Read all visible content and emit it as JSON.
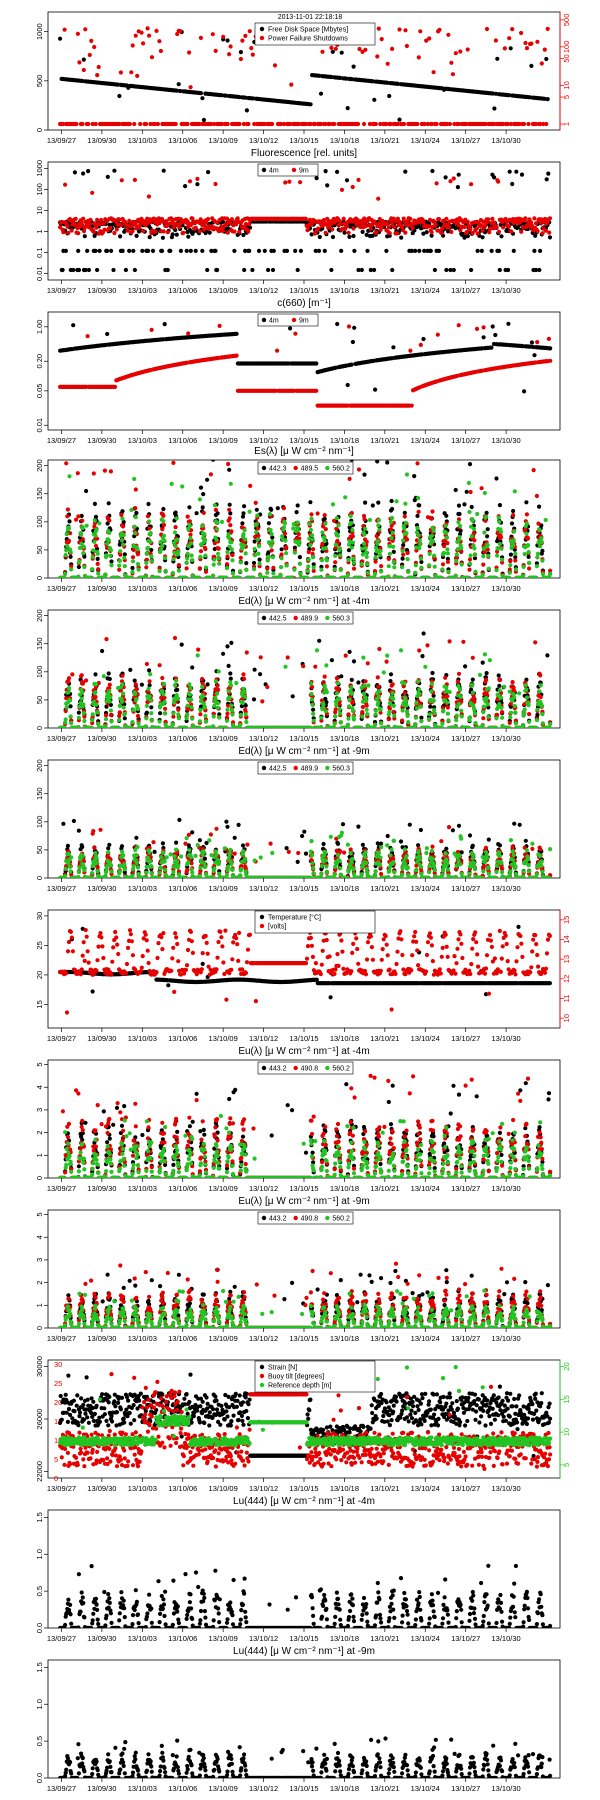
{
  "colors": {
    "black": "#000000",
    "red": "#e60000",
    "green": "#22c422",
    "axis": "#000000"
  },
  "x_ticks": [
    "13/09/27",
    "13/09/30",
    "13/10/03",
    "13/10/06",
    "13/10/09",
    "13/10/12",
    "13/10/15",
    "13/10/18",
    "13/10/21",
    "13/10/24",
    "13/10/27",
    "13/10/30"
  ],
  "chart_data": [
    {
      "id": "p1",
      "type": "scatter",
      "title": "",
      "timestamp": "2013-11-01 22:18:18",
      "yticks_left": [
        "0",
        "500",
        "1000"
      ],
      "ylim": [
        0,
        1200
      ],
      "yticks_right": [
        "1",
        "5",
        "10",
        "50",
        "100",
        "500"
      ],
      "ylim_right_log": [
        0.7,
        800
      ],
      "right_color": "red",
      "legend": [
        "Free Disk Space [Mbytes]",
        "Power Failure Shutdowns"
      ],
      "series": [
        {
          "name": "Free Disk Space [Mbytes]",
          "color": "black",
          "axis": "left",
          "pattern": "disk"
        },
        {
          "name": "Power Failure Shutdowns",
          "color": "red",
          "axis": "right",
          "pattern": "power"
        }
      ]
    },
    {
      "id": "p2",
      "type": "scatter",
      "title": "Fluorescence  [rel. units]",
      "yticks_left": [
        "0.01",
        "0.1",
        "1",
        "10",
        "100",
        "1000"
      ],
      "ylim_log": [
        0.005,
        2000
      ],
      "legend": [
        "4m",
        "9m"
      ],
      "series": [
        {
          "name": "4m",
          "color": "black",
          "axis": "left",
          "pattern": "fluor4"
        },
        {
          "name": "9m",
          "color": "red",
          "axis": "left",
          "pattern": "fluor9"
        }
      ]
    },
    {
      "id": "p3",
      "type": "scatter",
      "title": "c(660)  [m⁻¹]",
      "yticks_left": [
        "0.01",
        "0.05",
        "0.20",
        "1.00"
      ],
      "ylim_log": [
        0.008,
        2
      ],
      "legend": [
        "4m",
        "9m"
      ],
      "series": [
        {
          "name": "4m",
          "color": "black",
          "axis": "left",
          "pattern": "c4"
        },
        {
          "name": "9m",
          "color": "red",
          "axis": "left",
          "pattern": "c9"
        }
      ]
    },
    {
      "id": "p4",
      "type": "scatter",
      "title": "Es(λ)  [μ W cm⁻² nm⁻¹]",
      "yticks_left": [
        "0",
        "50",
        "100",
        "150",
        "200"
      ],
      "ylim": [
        0,
        210
      ],
      "legend": [
        "442.3",
        "489.5",
        "560.2"
      ],
      "series": [
        {
          "name": "442.3",
          "color": "black",
          "pattern": "diurnal",
          "amp": 120
        },
        {
          "name": "489.5",
          "color": "red",
          "pattern": "diurnal",
          "amp": 110
        },
        {
          "name": "560.2",
          "color": "green",
          "pattern": "diurnal",
          "amp": 100
        }
      ]
    },
    {
      "id": "p5",
      "type": "scatter",
      "title": "Ed(λ)  [μ W cm⁻² nm⁻¹] at -4m",
      "yticks_left": [
        "0",
        "50",
        "100",
        "150",
        "200"
      ],
      "ylim": [
        0,
        210
      ],
      "legend": [
        "442.5",
        "489.9",
        "560.3"
      ],
      "series": [
        {
          "name": "442.5",
          "color": "black",
          "pattern": "diurnalgap",
          "amp": 90
        },
        {
          "name": "489.9",
          "color": "red",
          "pattern": "diurnalgap",
          "amp": 85
        },
        {
          "name": "560.3",
          "color": "green",
          "pattern": "diurnalgap",
          "amp": 75
        }
      ]
    },
    {
      "id": "p6",
      "type": "scatter",
      "title": "Ed(λ)  [μ W cm⁻² nm⁻¹] at -9m",
      "yticks_left": [
        "0",
        "50",
        "100",
        "150",
        "200"
      ],
      "ylim": [
        0,
        210
      ],
      "legend": [
        "442.5",
        "489.9",
        "560.3"
      ],
      "series": [
        {
          "name": "442.5",
          "color": "black",
          "pattern": "diurnalgap",
          "amp": 55
        },
        {
          "name": "489.9",
          "color": "red",
          "pattern": "diurnalgap",
          "amp": 50
        },
        {
          "name": "560.3",
          "color": "green",
          "pattern": "diurnalgap",
          "amp": 45
        }
      ]
    },
    {
      "id": "p7",
      "type": "scatter",
      "title": "",
      "yticks_left": [
        "15",
        "20",
        "25",
        "30"
      ],
      "ylim": [
        11,
        31
      ],
      "yticks_right": [
        "10",
        "11",
        "12",
        "13",
        "14",
        "15"
      ],
      "ylim_right": [
        9.5,
        15.5
      ],
      "right_color": "red",
      "legend": [
        "Temperature [°C]",
        "[volts]"
      ],
      "series": [
        {
          "name": "Temperature [°C]",
          "color": "black",
          "axis": "left",
          "pattern": "temp"
        },
        {
          "name": "[volts]",
          "color": "red",
          "axis": "right",
          "pattern": "volts"
        }
      ]
    },
    {
      "id": "p8",
      "type": "scatter",
      "title": "Eu(λ)  [μ W cm⁻² nm⁻¹] at -4m",
      "yticks_left": [
        "0",
        "1",
        "2",
        "3",
        "4",
        "5"
      ],
      "ylim": [
        0,
        5.2
      ],
      "legend": [
        "443.2",
        "490.8",
        "560.2"
      ],
      "series": [
        {
          "name": "443.2",
          "color": "black",
          "pattern": "diurnalgap",
          "amp": 2.2
        },
        {
          "name": "490.8",
          "color": "red",
          "pattern": "diurnalgap",
          "amp": 2.4
        },
        {
          "name": "560.2",
          "color": "green",
          "pattern": "diurnalgap",
          "amp": 1.5
        }
      ]
    },
    {
      "id": "p9",
      "type": "scatter",
      "title": "Eu(λ)  [μ W cm⁻² nm⁻¹] at -9m",
      "yticks_left": [
        "0",
        "1",
        "2",
        "3",
        "4",
        "5"
      ],
      "ylim": [
        0,
        5.2
      ],
      "legend": [
        "443.2",
        "490.8",
        "560.2"
      ],
      "series": [
        {
          "name": "443.2",
          "color": "black",
          "pattern": "diurnalgap",
          "amp": 1.4
        },
        {
          "name": "490.8",
          "color": "red",
          "pattern": "diurnalgap",
          "amp": 1.5
        },
        {
          "name": "560.2",
          "color": "green",
          "pattern": "diurnalgap",
          "amp": 0.9
        }
      ]
    },
    {
      "id": "p10",
      "type": "scatter",
      "title": "",
      "yticks_left": [
        "22000",
        "26000",
        "30000"
      ],
      "ylim": [
        21500,
        30500
      ],
      "yticks_left2": [
        "0",
        "5",
        "10",
        "15",
        "20",
        "25",
        "30"
      ],
      "ylim2": [
        0,
        31
      ],
      "left2_color": "red",
      "yticks_right": [
        "5",
        "10",
        "15",
        "20"
      ],
      "ylim_right": [
        3,
        21
      ],
      "right_color": "green",
      "legend": [
        "Strain [N]",
        "Buoy tilt [degrees]",
        "Reference depth [m]"
      ],
      "series": [
        {
          "name": "Strain [N]",
          "color": "black",
          "axis": "left",
          "pattern": "strain"
        },
        {
          "name": "Buoy tilt [degrees]",
          "color": "red",
          "axis": "left2",
          "pattern": "tilt"
        },
        {
          "name": "Reference depth [m]",
          "color": "green",
          "axis": "right",
          "pattern": "depth"
        }
      ]
    },
    {
      "id": "p11",
      "type": "scatter",
      "title": "Lu(444)  [μ W cm⁻² nm⁻¹] at -4m",
      "yticks_left": [
        "0.0",
        "0.5",
        "1.0",
        "1.5"
      ],
      "ylim": [
        0,
        1.6
      ],
      "legend": [],
      "series": [
        {
          "name": "",
          "color": "black",
          "pattern": "diurnalgap",
          "amp": 0.45
        }
      ]
    },
    {
      "id": "p12",
      "type": "scatter",
      "title": "Lu(444)  [μ W cm⁻² nm⁻¹] at -9m",
      "yticks_left": [
        "0.0",
        "0.5",
        "1.0",
        "1.5"
      ],
      "ylim": [
        0,
        1.6
      ],
      "legend": [],
      "series": [
        {
          "name": "",
          "color": "black",
          "pattern": "diurnalgap",
          "amp": 0.3
        }
      ]
    }
  ]
}
